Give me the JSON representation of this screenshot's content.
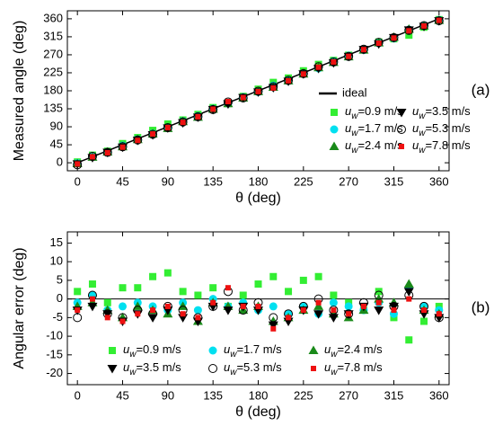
{
  "chart_data": [
    {
      "type": "scatter",
      "xlabel": "θ (deg)",
      "ylabel": "Measured angle (deg)",
      "annotation": "(a)",
      "legend": "lower right",
      "xlim": [
        -10,
        370
      ],
      "ylim": [
        -20,
        380
      ],
      "xticks": [
        0,
        45,
        90,
        135,
        180,
        225,
        270,
        315,
        360
      ],
      "yticks": [
        0,
        45,
        90,
        135,
        180,
        225,
        270,
        315,
        360
      ],
      "ideal": {
        "name": "ideal",
        "color": "#000000",
        "x": [
          0,
          360
        ],
        "values": [
          0,
          360
        ]
      },
      "x": [
        0,
        15,
        30,
        45,
        60,
        75,
        90,
        105,
        120,
        135,
        150,
        165,
        180,
        195,
        210,
        225,
        240,
        255,
        270,
        285,
        300,
        315,
        330,
        345,
        360
      ],
      "series": [
        {
          "name": "uw=0.9 m/s",
          "color": "#33ee33",
          "marker": "square",
          "values": [
            2,
            19,
            29,
            48,
            63,
            81,
            97,
            107,
            121,
            138,
            148,
            166,
            184,
            201,
            212,
            230,
            246,
            256,
            269,
            282,
            302,
            310,
            319,
            339,
            358
          ]
        },
        {
          "name": "uw=1.7 m/s",
          "color": "#00e0f0",
          "marker": "circle",
          "values": [
            -1,
            16,
            27,
            43,
            59,
            73,
            87,
            104,
            117,
            135,
            148,
            164,
            177,
            193,
            206,
            223,
            236,
            254,
            268,
            282,
            299,
            311,
            333,
            343,
            357
          ]
        },
        {
          "name": "uw=2.4 m/s",
          "color": "#1a8a1a",
          "marker": "triangle",
          "values": [
            -2,
            14,
            27,
            40,
            58,
            72,
            86,
            103,
            114,
            134,
            148,
            162,
            178,
            189,
            205,
            222,
            238,
            251,
            265,
            282,
            300,
            314,
            334,
            342,
            356
          ]
        },
        {
          "name": "uw=3.5 m/s",
          "color": "#000000",
          "marker": "triangle-down",
          "values": [
            -3,
            13,
            26,
            39,
            56,
            70,
            87,
            100,
            114,
            133,
            147,
            163,
            177,
            188,
            204,
            222,
            236,
            250,
            266,
            283,
            297,
            313,
            332,
            341,
            355
          ]
        },
        {
          "name": "uw=5.3 m/s",
          "color": "#000000",
          "marker": "circle-open",
          "values": [
            -5,
            16,
            26,
            40,
            57,
            71,
            88,
            102,
            115,
            133,
            152,
            162,
            179,
            190,
            206,
            223,
            240,
            252,
            266,
            284,
            301,
            313,
            331,
            343,
            355
          ]
        },
        {
          "name": "uw=7.8 m/s",
          "color": "#ee1111",
          "marker": "square-small",
          "values": [
            -3,
            15,
            25,
            39,
            56,
            72,
            88,
            101,
            115,
            134,
            153,
            163,
            178,
            187,
            205,
            222,
            239,
            252,
            266,
            283,
            299,
            312,
            330,
            342,
            356
          ]
        }
      ]
    },
    {
      "type": "scatter",
      "xlabel": "θ (deg)",
      "ylabel": "Angular error (deg)",
      "annotation": "(b)",
      "legend": "lower center",
      "xlim": [
        -10,
        370
      ],
      "ylim": [
        -23,
        18
      ],
      "hline": 0,
      "xticks": [
        0,
        45,
        90,
        135,
        180,
        225,
        270,
        315,
        360
      ],
      "yticks": [
        -20,
        -15,
        -10,
        -5,
        0,
        5,
        10,
        15
      ],
      "x": [
        0,
        15,
        30,
        45,
        60,
        75,
        90,
        105,
        120,
        135,
        150,
        165,
        180,
        195,
        210,
        225,
        240,
        255,
        270,
        285,
        300,
        315,
        330,
        345,
        360
      ],
      "series": [
        {
          "name": "uw=0.9 m/s",
          "color": "#33ee33",
          "marker": "square",
          "values": [
            2,
            4,
            -1,
            3,
            3,
            6,
            7,
            2,
            1,
            3,
            -2,
            1,
            4,
            6,
            2,
            5,
            6,
            1,
            -1,
            -3,
            2,
            -5,
            -11,
            -6,
            -2
          ]
        },
        {
          "name": "uw=1.7 m/s",
          "color": "#00e0f0",
          "marker": "circle",
          "values": [
            -1,
            1,
            -3,
            -2,
            -1,
            -2,
            -3,
            -1,
            -3,
            0,
            -2,
            -1,
            -3,
            -2,
            -4,
            -2,
            -4,
            -1,
            -2,
            -3,
            -1,
            -4,
            3,
            -2,
            -3
          ]
        },
        {
          "name": "uw=2.4 m/s",
          "color": "#1a8a1a",
          "marker": "triangle",
          "values": [
            -2,
            -1,
            -3,
            -5,
            -2,
            -3,
            -4,
            -2,
            -6,
            -1,
            -2,
            -3,
            -2,
            -6,
            -5,
            -3,
            -2,
            -4,
            -5,
            -3,
            0,
            -1,
            4,
            -3,
            -4
          ]
        },
        {
          "name": "uw=3.5 m/s",
          "color": "#000000",
          "marker": "triangle-down",
          "values": [
            -3,
            -2,
            -4,
            -6,
            -4,
            -5,
            -3,
            -5,
            -6,
            -2,
            -3,
            -2,
            -3,
            -7,
            -6,
            -3,
            -4,
            -5,
            -4,
            -2,
            -3,
            -2,
            2,
            -4,
            -5
          ]
        },
        {
          "name": "uw=5.3 m/s",
          "color": "#000000",
          "marker": "circle-open",
          "values": [
            -5,
            1,
            -4,
            -5,
            -3,
            -4,
            -2,
            -3,
            -5,
            -2,
            2,
            -3,
            -1,
            -5,
            -4,
            -2,
            0,
            -3,
            -4,
            -1,
            1,
            -2,
            1,
            -2,
            -5
          ]
        },
        {
          "name": "uw=7.8 m/s",
          "color": "#ee1111",
          "marker": "square-small",
          "values": [
            -3,
            0,
            -5,
            -6,
            -4,
            -3,
            -2,
            -4,
            -5,
            -1,
            3,
            -2,
            -2,
            -8,
            -5,
            -3,
            -1,
            -3,
            -4,
            -2,
            -1,
            -3,
            0,
            -3,
            -4
          ]
        }
      ]
    }
  ]
}
